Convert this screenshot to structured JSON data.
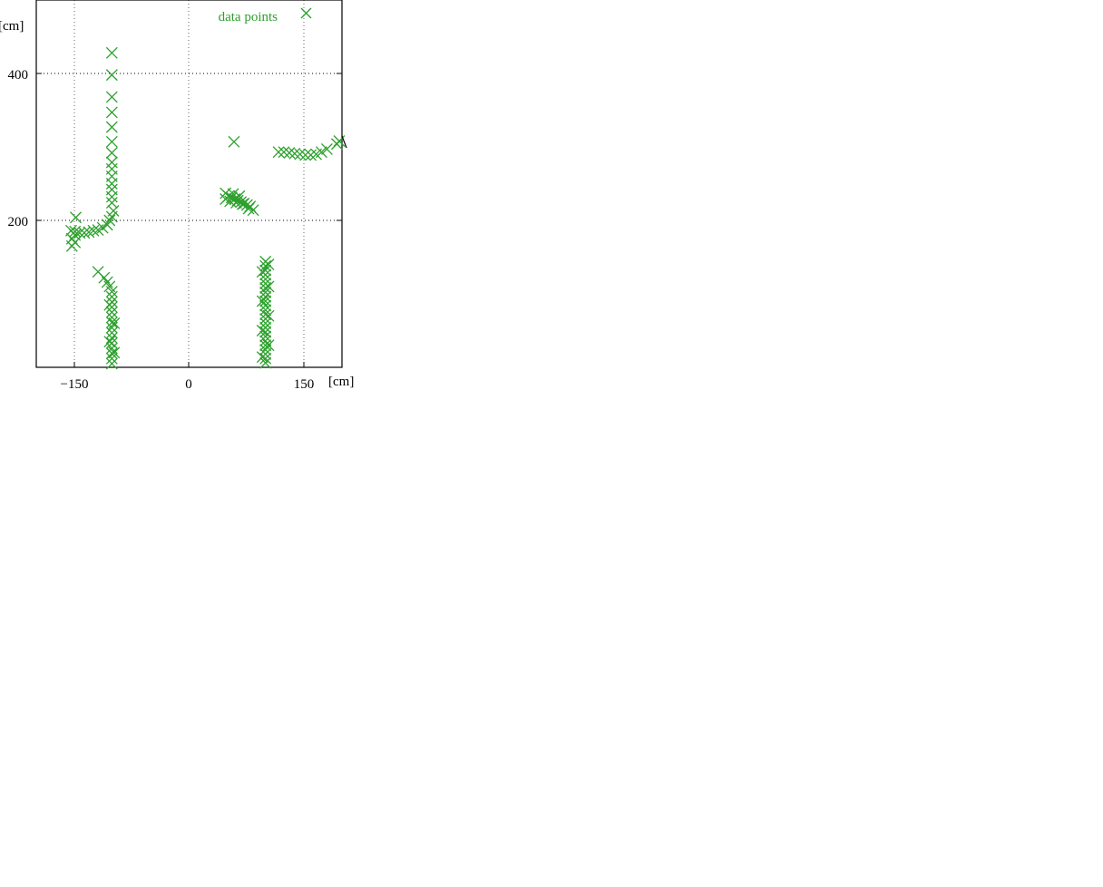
{
  "chart_data": {
    "type": "scatter",
    "title": "",
    "xlabel": "[cm]",
    "ylabel": "[cm]",
    "xlim": [
      -200,
      200
    ],
    "ylim": [
      0,
      500
    ],
    "x_ticks": [
      {
        "value": -150,
        "label": "−150"
      },
      {
        "value": 0,
        "label": "0"
      },
      {
        "value": 150,
        "label": "150"
      }
    ],
    "y_ticks": [
      {
        "value": 200,
        "label": "200"
      },
      {
        "value": 400,
        "label": "400"
      }
    ],
    "grid": true,
    "legend_position": "top-right",
    "series": [
      {
        "name": "data points",
        "color": "#2ca02c",
        "marker": "x",
        "points": [
          [
            -100,
            428
          ],
          [
            -100,
            398
          ],
          [
            -100,
            368
          ],
          [
            -100,
            347
          ],
          [
            -100,
            327
          ],
          [
            -100,
            307
          ],
          [
            -100,
            292
          ],
          [
            -100,
            279
          ],
          [
            -100,
            270
          ],
          [
            -100,
            260
          ],
          [
            -100,
            250
          ],
          [
            -100,
            242
          ],
          [
            -100,
            232
          ],
          [
            -100,
            224
          ],
          [
            -98,
            213
          ],
          [
            -100,
            205
          ],
          [
            -103,
            200
          ],
          [
            -106,
            194
          ],
          [
            -112,
            190
          ],
          [
            -118,
            187
          ],
          [
            -124,
            186
          ],
          [
            -130,
            184
          ],
          [
            -136,
            183
          ],
          [
            -142,
            183
          ],
          [
            -148,
            185
          ],
          [
            -153,
            186
          ],
          [
            -148,
            180
          ],
          [
            -152,
            175
          ],
          [
            -148,
            170
          ],
          [
            -152,
            165
          ],
          [
            -147,
            204
          ],
          [
            -118,
            130
          ],
          [
            -110,
            122
          ],
          [
            -106,
            116
          ],
          [
            -103,
            110
          ],
          [
            -100,
            103
          ],
          [
            -100,
            96
          ],
          [
            -100,
            89
          ],
          [
            -100,
            82
          ],
          [
            -100,
            75
          ],
          [
            -100,
            68
          ],
          [
            -100,
            61
          ],
          [
            -100,
            54
          ],
          [
            -100,
            47
          ],
          [
            -100,
            40
          ],
          [
            -100,
            33
          ],
          [
            -100,
            26
          ],
          [
            -100,
            19
          ],
          [
            -100,
            12
          ],
          [
            -100,
            5
          ],
          [
            -103,
            85
          ],
          [
            -97,
            60
          ],
          [
            -103,
            35
          ],
          [
            -97,
            20
          ],
          [
            59,
            307
          ],
          [
            48,
            237
          ],
          [
            52,
            233
          ],
          [
            56,
            231
          ],
          [
            60,
            229
          ],
          [
            64,
            227
          ],
          [
            68,
            225
          ],
          [
            72,
            223
          ],
          [
            76,
            221
          ],
          [
            80,
            219
          ],
          [
            48,
            229
          ],
          [
            54,
            226
          ],
          [
            62,
            224
          ],
          [
            70,
            222
          ],
          [
            78,
            216
          ],
          [
            84,
            214
          ],
          [
            58,
            236
          ],
          [
            66,
            233
          ],
          [
            117,
            293
          ],
          [
            124,
            293
          ],
          [
            131,
            292
          ],
          [
            138,
            291
          ],
          [
            145,
            290
          ],
          [
            152,
            289
          ],
          [
            159,
            289
          ],
          [
            166,
            290
          ],
          [
            173,
            293
          ],
          [
            180,
            297
          ],
          [
            193,
            304
          ],
          [
            196,
            308
          ],
          [
            100,
            144
          ],
          [
            100,
            138
          ],
          [
            100,
            132
          ],
          [
            100,
            126
          ],
          [
            100,
            120
          ],
          [
            100,
            114
          ],
          [
            100,
            108
          ],
          [
            100,
            102
          ],
          [
            100,
            96
          ],
          [
            100,
            90
          ],
          [
            100,
            84
          ],
          [
            100,
            78
          ],
          [
            100,
            72
          ],
          [
            100,
            66
          ],
          [
            100,
            60
          ],
          [
            100,
            54
          ],
          [
            100,
            48
          ],
          [
            100,
            42
          ],
          [
            100,
            36
          ],
          [
            100,
            30
          ],
          [
            100,
            24
          ],
          [
            100,
            18
          ],
          [
            100,
            12
          ],
          [
            100,
            6
          ],
          [
            96,
            130
          ],
          [
            104,
            110
          ],
          [
            96,
            90
          ],
          [
            104,
            70
          ],
          [
            96,
            50
          ],
          [
            104,
            30
          ],
          [
            96,
            14
          ],
          [
            104,
            140
          ]
        ]
      }
    ]
  }
}
